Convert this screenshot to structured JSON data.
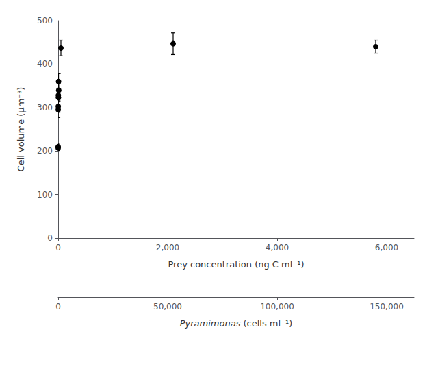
{
  "chart_data": {
    "type": "scatter",
    "xlabel": "Prey concentration (ng C ml⁻¹)",
    "ylabel": "Cell volume (μm⁻³)",
    "x2label": "Pyramimonas (cells ml⁻¹)",
    "x": [
      0,
      0.3,
      0.7,
      1.5,
      3,
      5,
      7,
      10,
      50,
      2100,
      5800
    ],
    "values": [
      210,
      207,
      295,
      303,
      328,
      323,
      360,
      340,
      437,
      447,
      440
    ],
    "yerr": [
      8,
      6,
      18,
      14,
      10,
      8,
      18,
      15,
      18,
      25,
      15
    ],
    "color": "#000000",
    "marker": "circle",
    "xlim": [
      0,
      6500
    ],
    "xticks": [
      0,
      {
        "value": 2000,
        "label": "2,000"
      },
      {
        "value": 4000,
        "label": "4,000"
      },
      {
        "value": 6000,
        "label": "6,000"
      }
    ],
    "ylim": [
      0,
      500
    ],
    "yticks": [
      0,
      100,
      200,
      300,
      400,
      500
    ],
    "x2lim": [
      0,
      162500
    ],
    "x2ticks": [
      0,
      {
        "value": 50000,
        "label": "50,000"
      },
      {
        "value": 100000,
        "label": "100,000"
      },
      {
        "value": 150000,
        "label": "150,000"
      }
    ],
    "grid": false
  }
}
